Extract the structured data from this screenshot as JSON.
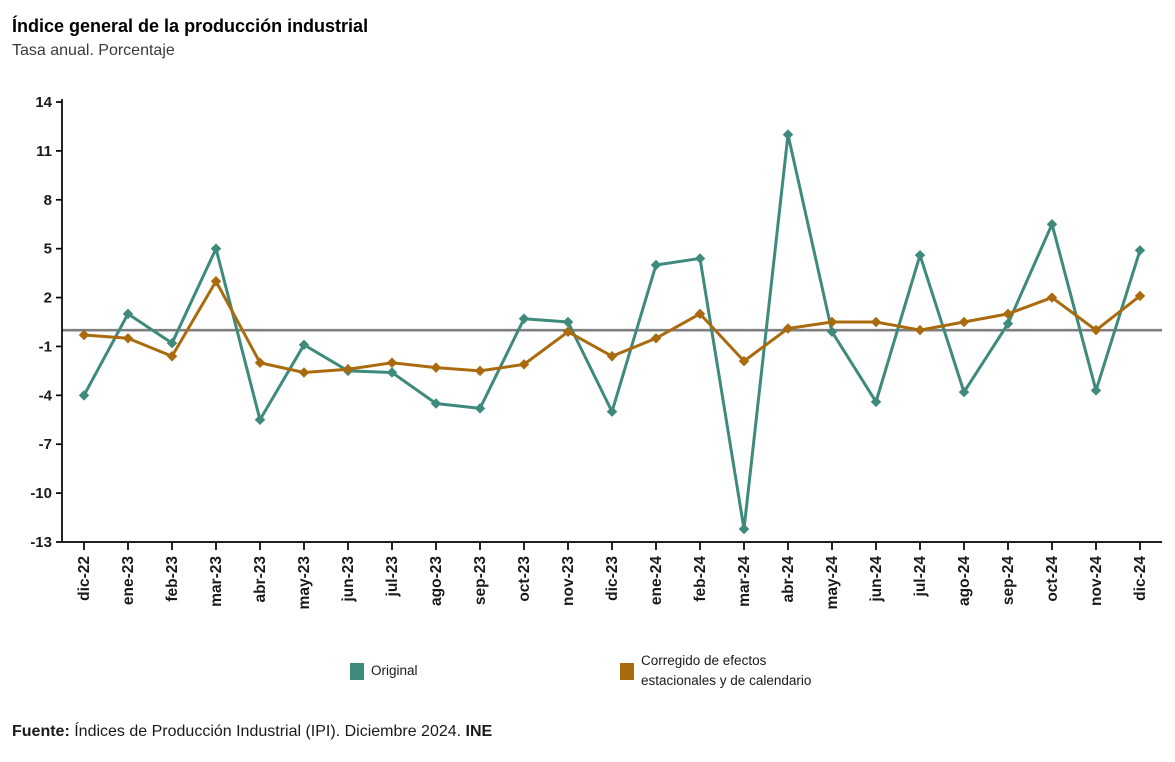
{
  "header": {
    "title": "Índice general de la producción industrial",
    "subtitle": "Tasa anual. Porcentaje"
  },
  "legend": {
    "original": "Original",
    "corrected_line1": "Corregido de efectos",
    "corrected_line2": "estacionales y de calendario"
  },
  "footer": {
    "source_label": "Fuente:",
    "source_text": "Índices de Producción Industrial (IPI). Diciembre 2024.",
    "source_org": "INE"
  },
  "chart_data": {
    "type": "line",
    "title": "Índice general de la producción industrial",
    "subtitle": "Tasa anual. Porcentaje",
    "categories": [
      "dic-22",
      "ene-23",
      "feb-23",
      "mar-23",
      "abr-23",
      "may-23",
      "jun-23",
      "jul-23",
      "ago-23",
      "sep-23",
      "oct-23",
      "nov-23",
      "dic-23",
      "ene-24",
      "feb-24",
      "mar-24",
      "abr-24",
      "may-24",
      "jun-24",
      "jul-24",
      "ago-24",
      "sep-24",
      "oct-24",
      "nov-24",
      "dic-24"
    ],
    "series": [
      {
        "name": "Original",
        "color": "#3E8A7C",
        "values": [
          -4.0,
          1.0,
          -0.8,
          5.0,
          -5.5,
          -0.9,
          -2.5,
          -2.6,
          -4.5,
          -4.8,
          0.7,
          0.5,
          -5.0,
          4.0,
          4.4,
          -12.2,
          12.0,
          -0.1,
          -4.4,
          4.6,
          -3.8,
          0.4,
          6.5,
          -3.7,
          4.9
        ]
      },
      {
        "name": "Corregido de efectos estacionales y de calendario",
        "color": "#AA6B0F",
        "values": [
          -0.3,
          -0.5,
          -1.6,
          3.0,
          -2.0,
          -2.6,
          -2.4,
          -2.0,
          -2.3,
          -2.5,
          -2.1,
          -0.1,
          -1.6,
          -0.5,
          1.0,
          -1.9,
          0.1,
          0.5,
          0.5,
          0.0,
          0.5,
          1.0,
          2.0,
          0.0,
          2.1
        ]
      }
    ],
    "ylim": [
      -13,
      14
    ],
    "yticks": [
      14,
      11,
      8,
      5,
      2,
      -1,
      -4,
      -7,
      -10,
      -13
    ],
    "zero_line": 0,
    "zero_line_color": "#7f7f7f",
    "axis_color": "#000000",
    "grid": false,
    "legend_position": "bottom",
    "marker": "diamond"
  }
}
